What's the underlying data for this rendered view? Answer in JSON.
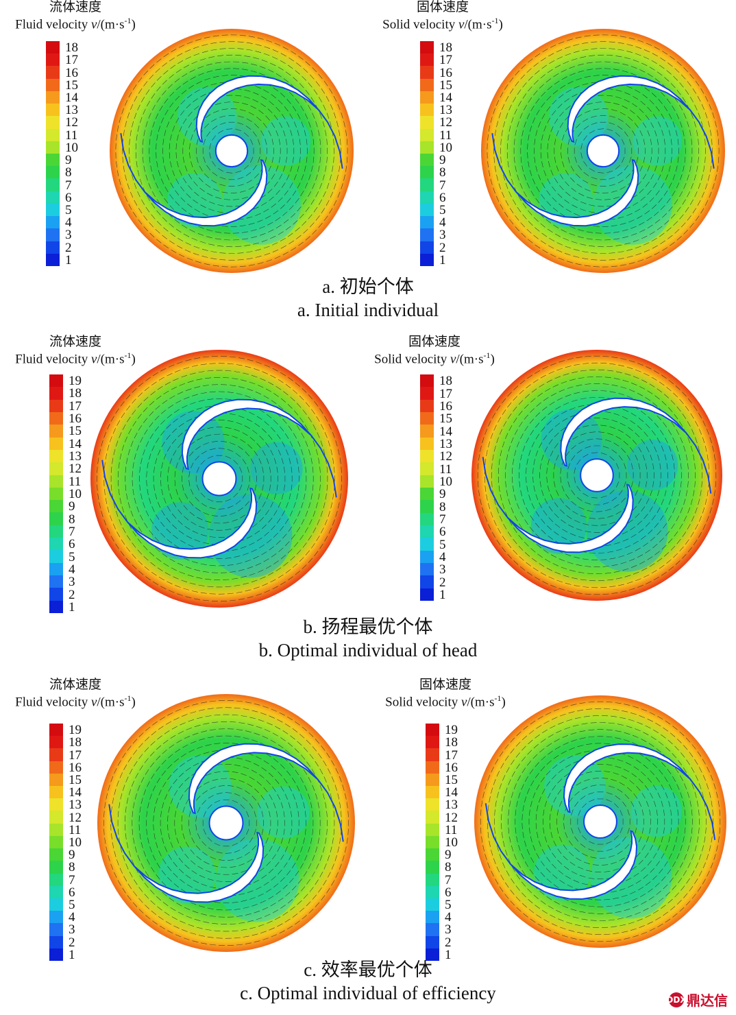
{
  "colors": [
    "#0a1fd6",
    "#1045e8",
    "#1f72f2",
    "#1aa1f2",
    "#1ccde0",
    "#1ed6b0",
    "#22d77e",
    "#2dd34b",
    "#4ad635",
    "#78de2a",
    "#a8e42a",
    "#d4e82c",
    "#efe22a",
    "#f7c21e",
    "#f59a1c",
    "#f06a1a",
    "#e93a18",
    "#e01814",
    "#d40c10"
  ],
  "sections": [
    {
      "caption_cn": "a. 初始个体",
      "caption_en": "a. Initial individual",
      "panels": [
        {
          "title_cn": "流体速度",
          "title_en": "Fluid velocity",
          "symbol": "v",
          "unit": "/(m·s",
          "exp": "-1",
          "unit_close": ")",
          "ticks": [
            "18",
            "17",
            "16",
            "15",
            "14",
            "13",
            "12",
            "11",
            "10",
            "9",
            "8",
            "7",
            "6",
            "5",
            "4",
            "3",
            "2",
            "1"
          ]
        },
        {
          "title_cn": "固体速度",
          "title_en": "Solid velocity",
          "symbol": "v",
          "unit": "/(m·s",
          "exp": "-1",
          "unit_close": ")",
          "ticks": [
            "18",
            "17",
            "16",
            "15",
            "14",
            "13",
            "12",
            "11",
            "10",
            "9",
            "8",
            "7",
            "6",
            "5",
            "4",
            "3",
            "2",
            "1"
          ]
        }
      ]
    },
    {
      "caption_cn": "b. 扬程最优个体",
      "caption_en": "b. Optimal individual of head",
      "panels": [
        {
          "title_cn": "流体速度",
          "title_en": "Fluid velocity",
          "symbol": "v",
          "unit": "/(m·s",
          "exp": "-1",
          "unit_close": ")",
          "ticks": [
            "19",
            "18",
            "17",
            "16",
            "15",
            "14",
            "13",
            "12",
            "11",
            "10",
            "9",
            "8",
            "7",
            "6",
            "5",
            "4",
            "3",
            "2",
            "1"
          ]
        },
        {
          "title_cn": "固体速度",
          "title_en": "Solid velocity",
          "symbol": "v",
          "unit": "/(m·s",
          "exp": "-1",
          "unit_close": ")",
          "ticks": [
            "18",
            "17",
            "16",
            "15",
            "14",
            "13",
            "12",
            "11",
            "10",
            "9",
            "8",
            "7",
            "6",
            "5",
            "4",
            "3",
            "2",
            "1"
          ]
        }
      ]
    },
    {
      "caption_cn": "c. 效率最优个体",
      "caption_en": "c. Optimal individual of efficiency",
      "panels": [
        {
          "title_cn": "流体速度",
          "title_en": "Fluid velocity",
          "symbol": "v",
          "unit": "/(m·s",
          "exp": "-1",
          "unit_close": ")",
          "ticks": [
            "19",
            "18",
            "17",
            "16",
            "15",
            "14",
            "13",
            "12",
            "11",
            "10",
            "9",
            "8",
            "7",
            "6",
            "5",
            "4",
            "3",
            "2",
            "1"
          ]
        },
        {
          "title_cn": "固体速度",
          "title_en": "Solid velocity",
          "symbol": "v",
          "unit": "/(m·s",
          "exp": "-1",
          "unit_close": ")",
          "ticks": [
            "19",
            "18",
            "17",
            "16",
            "15",
            "14",
            "13",
            "12",
            "11",
            "10",
            "9",
            "8",
            "7",
            "6",
            "5",
            "4",
            "3",
            "2",
            "1"
          ]
        }
      ]
    }
  ],
  "logo": {
    "text": "鼎达信",
    "mark": "DDX"
  }
}
